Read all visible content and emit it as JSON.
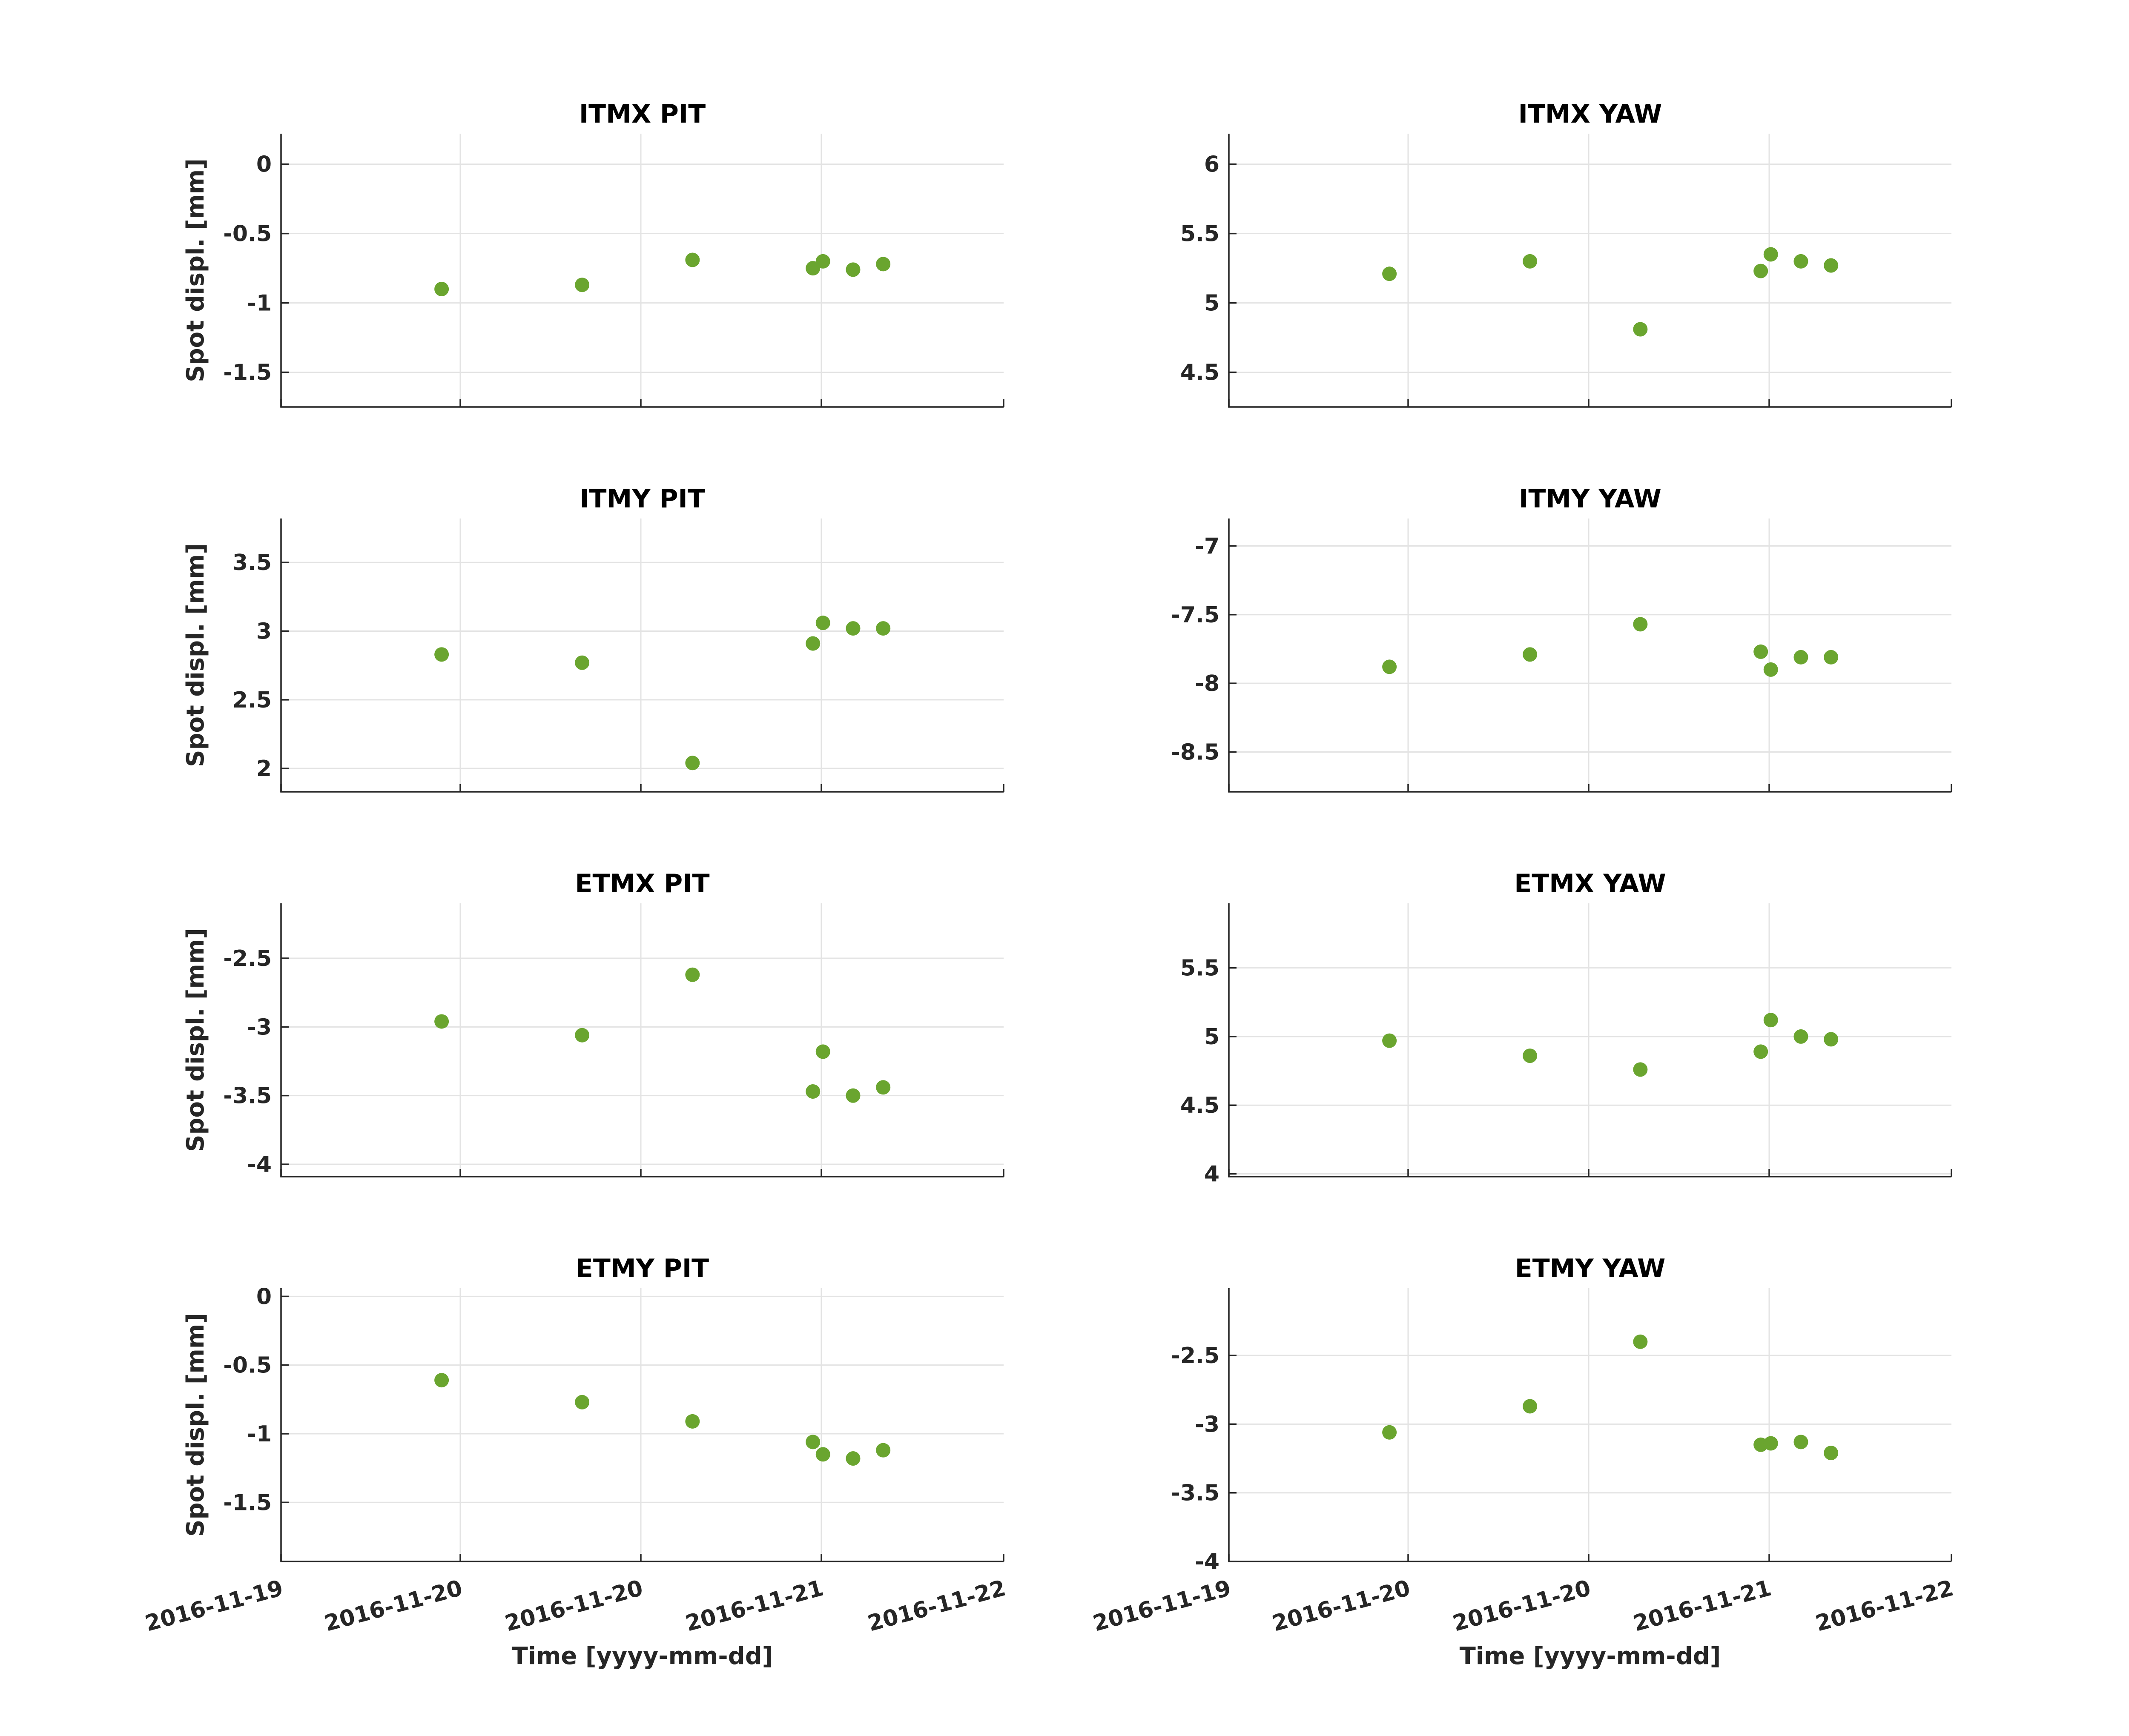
{
  "figure": {
    "marker_color": "#6aa52f",
    "x_tick_labels": [
      "2016-11-19",
      "2016-11-20",
      "2016-11-20",
      "2016-11-21",
      "2016-11-22"
    ]
  },
  "chart_data": [
    {
      "type": "scatter",
      "title": "ITMX PIT",
      "xlabel": "",
      "ylabel": "Spot displ. [mm]",
      "ylim": [
        -1.75,
        0.22
      ],
      "yticks": [
        "-1.5",
        "-1",
        "-0.5",
        "0"
      ],
      "ytick_values": [
        -1.5,
        -1,
        -0.5,
        0
      ],
      "xlim": [
        "2016-11-19T00:00",
        "2016-11-22T00:00"
      ],
      "grid": true,
      "x": [
        "2016-11-19T16:00",
        "2016-11-20T06:00",
        "2016-11-20T17:00",
        "2016-11-21T05:00",
        "2016-11-21T06:00",
        "2016-11-21T09:00",
        "2016-11-21T12:00"
      ],
      "y": [
        -0.9,
        -0.87,
        -0.69,
        -0.75,
        -0.7,
        -0.76,
        -0.72
      ]
    },
    {
      "type": "scatter",
      "title": "ITMX YAW",
      "xlabel": "",
      "ylabel": "",
      "ylim": [
        4.25,
        6.22
      ],
      "yticks": [
        "4.5",
        "5",
        "5.5",
        "6"
      ],
      "ytick_values": [
        4.5,
        5,
        5.5,
        6
      ],
      "xlim": [
        "2016-11-19T00:00",
        "2016-11-22T00:00"
      ],
      "grid": true,
      "x": [
        "2016-11-19T16:00",
        "2016-11-20T06:00",
        "2016-11-20T17:00",
        "2016-11-21T05:00",
        "2016-11-21T06:00",
        "2016-11-21T09:00",
        "2016-11-21T12:00"
      ],
      "y": [
        5.21,
        5.3,
        4.81,
        5.23,
        5.35,
        5.3,
        5.27
      ]
    },
    {
      "type": "scatter",
      "title": "ITMY PIT",
      "xlabel": "",
      "ylabel": "Spot displ. [mm]",
      "ylim": [
        1.83,
        3.82
      ],
      "yticks": [
        "2",
        "2.5",
        "3",
        "3.5"
      ],
      "ytick_values": [
        2,
        2.5,
        3,
        3.5
      ],
      "xlim": [
        "2016-11-19T00:00",
        "2016-11-22T00:00"
      ],
      "grid": true,
      "x": [
        "2016-11-19T16:00",
        "2016-11-20T06:00",
        "2016-11-20T17:00",
        "2016-11-21T05:00",
        "2016-11-21T06:00",
        "2016-11-21T09:00",
        "2016-11-21T12:00"
      ],
      "y": [
        2.83,
        2.77,
        2.04,
        2.91,
        3.06,
        3.02,
        3.02
      ]
    },
    {
      "type": "scatter",
      "title": "ITMY YAW",
      "xlabel": "",
      "ylabel": "",
      "ylim": [
        -8.79,
        -6.8
      ],
      "yticks": [
        "-8.5",
        "-8",
        "-7.5",
        "-7"
      ],
      "ytick_values": [
        -8.5,
        -8,
        -7.5,
        -7
      ],
      "xlim": [
        "2016-11-19T00:00",
        "2016-11-22T00:00"
      ],
      "grid": true,
      "x": [
        "2016-11-19T16:00",
        "2016-11-20T06:00",
        "2016-11-20T17:00",
        "2016-11-21T05:00",
        "2016-11-21T06:00",
        "2016-11-21T09:00",
        "2016-11-21T12:00"
      ],
      "y": [
        -7.88,
        -7.79,
        -7.57,
        -7.77,
        -7.9,
        -7.81,
        -7.81
      ]
    },
    {
      "type": "scatter",
      "title": "ETMX PIT",
      "xlabel": "",
      "ylabel": "Spot displ. [mm]",
      "ylim": [
        -4.09,
        -2.1
      ],
      "yticks": [
        "-4",
        "-3.5",
        "-3",
        "-2.5"
      ],
      "ytick_values": [
        -4,
        -3.5,
        -3,
        -2.5
      ],
      "xlim": [
        "2016-11-19T00:00",
        "2016-11-22T00:00"
      ],
      "grid": true,
      "x": [
        "2016-11-19T16:00",
        "2016-11-20T06:00",
        "2016-11-20T17:00",
        "2016-11-21T05:00",
        "2016-11-21T06:00",
        "2016-11-21T09:00",
        "2016-11-21T12:00"
      ],
      "y": [
        -2.96,
        -3.06,
        -2.62,
        -3.47,
        -3.18,
        -3.5,
        -3.44
      ]
    },
    {
      "type": "scatter",
      "title": "ETMX YAW",
      "xlabel": "",
      "ylabel": "",
      "ylim": [
        3.98,
        5.97
      ],
      "yticks": [
        "4",
        "4.5",
        "5",
        "5.5"
      ],
      "ytick_values": [
        4,
        4.5,
        5,
        5.5
      ],
      "xlim": [
        "2016-11-19T00:00",
        "2016-11-22T00:00"
      ],
      "grid": true,
      "x": [
        "2016-11-19T16:00",
        "2016-11-20T06:00",
        "2016-11-20T17:00",
        "2016-11-21T05:00",
        "2016-11-21T06:00",
        "2016-11-21T09:00",
        "2016-11-21T12:00"
      ],
      "y": [
        4.97,
        4.86,
        4.76,
        4.89,
        5.12,
        5.0,
        4.98
      ]
    },
    {
      "type": "scatter",
      "title": "ETMY PIT",
      "xlabel": "Time [yyyy-mm-dd]",
      "ylabel": "Spot displ. [mm]",
      "ylim": [
        -1.93,
        0.06
      ],
      "yticks": [
        "-1.5",
        "-1",
        "-0.5",
        "0"
      ],
      "ytick_values": [
        -1.5,
        -1,
        -0.5,
        0
      ],
      "xlim": [
        "2016-11-19T00:00",
        "2016-11-22T00:00"
      ],
      "grid": true,
      "x": [
        "2016-11-19T16:00",
        "2016-11-20T06:00",
        "2016-11-20T17:00",
        "2016-11-21T05:00",
        "2016-11-21T06:00",
        "2016-11-21T09:00",
        "2016-11-21T12:00"
      ],
      "y": [
        -0.61,
        -0.77,
        -0.91,
        -1.06,
        -1.15,
        -1.18,
        -1.12
      ]
    },
    {
      "type": "scatter",
      "title": "ETMY YAW",
      "xlabel": "Time [yyyy-mm-dd]",
      "ylabel": "",
      "ylim": [
        -4.0,
        -2.01
      ],
      "yticks": [
        "-4",
        "-3.5",
        "-3",
        "-2.5"
      ],
      "ytick_values": [
        -4,
        -3.5,
        -3,
        -2.5
      ],
      "xlim": [
        "2016-11-19T00:00",
        "2016-11-22T00:00"
      ],
      "grid": true,
      "x": [
        "2016-11-19T16:00",
        "2016-11-20T06:00",
        "2016-11-20T17:00",
        "2016-11-21T05:00",
        "2016-11-21T06:00",
        "2016-11-21T09:00",
        "2016-11-21T12:00"
      ],
      "y": [
        -3.06,
        -2.87,
        -2.4,
        -3.15,
        -3.14,
        -3.13,
        -3.21
      ]
    }
  ]
}
